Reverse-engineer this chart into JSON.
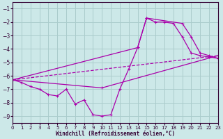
{
  "background_color": "#cce8e8",
  "grid_color": "#aacccc",
  "line_color": "#aa00aa",
  "xlabel": "Windchill (Refroidissement éolien,°C)",
  "xlim": [
    0,
    23
  ],
  "ylim": [
    -9.5,
    -0.5
  ],
  "yticks": [
    -9,
    -8,
    -7,
    -6,
    -5,
    -4,
    -3,
    -2,
    -1
  ],
  "xticks": [
    0,
    1,
    2,
    3,
    4,
    5,
    6,
    7,
    8,
    9,
    10,
    11,
    12,
    13,
    14,
    15,
    16,
    17,
    18,
    19,
    20,
    21,
    22,
    23
  ],
  "line1_x": [
    0,
    1,
    2,
    3,
    4,
    5,
    6,
    7,
    8,
    9,
    10,
    11,
    12,
    13,
    14,
    15,
    16,
    17,
    18,
    19,
    20,
    21,
    22,
    23
  ],
  "line1_y": [
    -6.3,
    -6.5,
    -6.8,
    -7.0,
    -7.4,
    -7.5,
    -7.0,
    -8.1,
    -7.8,
    -8.9,
    -9.0,
    -8.9,
    -7.0,
    -5.5,
    -3.9,
    -1.7,
    -2.0,
    -2.0,
    -2.1,
    -3.1,
    -4.3,
    -4.5,
    -4.6,
    -4.7
  ],
  "line2_x": [
    0,
    14,
    15,
    19,
    20,
    21,
    22,
    23
  ],
  "line2_y": [
    -6.3,
    -3.9,
    -1.7,
    -2.1,
    -3.1,
    -4.3,
    -4.5,
    -4.7
  ],
  "line3_x": [
    0,
    10,
    23
  ],
  "line3_y": [
    -6.3,
    -6.9,
    -4.5
  ],
  "line4_x": [
    0,
    23
  ],
  "line4_y": [
    -6.3,
    -4.5
  ]
}
